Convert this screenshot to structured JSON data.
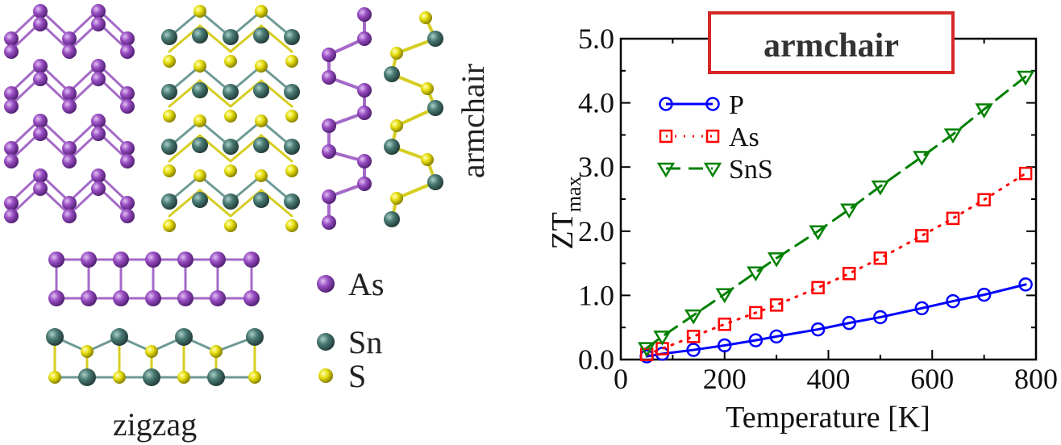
{
  "structures": {
    "armchair_label": "armchair",
    "zigzag_label": "zigzag",
    "legend": [
      {
        "label": "As",
        "color": "#9a4fc4"
      },
      {
        "label": "Sn",
        "color": "#4a7a74"
      },
      {
        "label": "S",
        "color": "#e8df10"
      }
    ]
  },
  "chart_data": {
    "type": "line",
    "title": "armchair",
    "xlabel": "Temperature [K]",
    "ylabel": "ZT",
    "ylabel_sub": "max",
    "xlim": [
      0,
      800
    ],
    "ylim": [
      0,
      5
    ],
    "xticks": [
      0,
      200,
      400,
      600,
      800
    ],
    "xtick_labels": [
      "0",
      "200",
      "400",
      "600",
      "800"
    ],
    "yticks": [
      0,
      1,
      2,
      3,
      4,
      5
    ],
    "ytick_labels": [
      "0.0",
      "1.0",
      "2.0",
      "3.0",
      "4.0",
      "5.0"
    ],
    "legend_position": "top-left",
    "series": [
      {
        "name": "P",
        "color": "#0000ff",
        "marker": "circle",
        "dash": "solid",
        "x": [
          50,
          80,
          140,
          200,
          260,
          300,
          380,
          440,
          500,
          580,
          640,
          700,
          780
        ],
        "y": [
          0.05,
          0.09,
          0.15,
          0.22,
          0.3,
          0.36,
          0.47,
          0.57,
          0.66,
          0.8,
          0.91,
          1.01,
          1.17
        ]
      },
      {
        "name": "As",
        "color": "#ff0000",
        "marker": "square",
        "dash": "dotted",
        "x": [
          50,
          80,
          140,
          200,
          260,
          300,
          380,
          440,
          500,
          580,
          640,
          700,
          780
        ],
        "y": [
          0.08,
          0.17,
          0.36,
          0.55,
          0.73,
          0.85,
          1.12,
          1.34,
          1.58,
          1.93,
          2.2,
          2.49,
          2.9
        ]
      },
      {
        "name": "SnS",
        "color": "#008000",
        "marker": "triangle-down",
        "dash": "dashed",
        "x": [
          50,
          80,
          140,
          200,
          260,
          300,
          380,
          440,
          500,
          580,
          640,
          700,
          780
        ],
        "y": [
          0.18,
          0.36,
          0.69,
          1.02,
          1.36,
          1.58,
          2.0,
          2.34,
          2.7,
          3.16,
          3.51,
          3.9,
          4.41
        ]
      }
    ]
  }
}
